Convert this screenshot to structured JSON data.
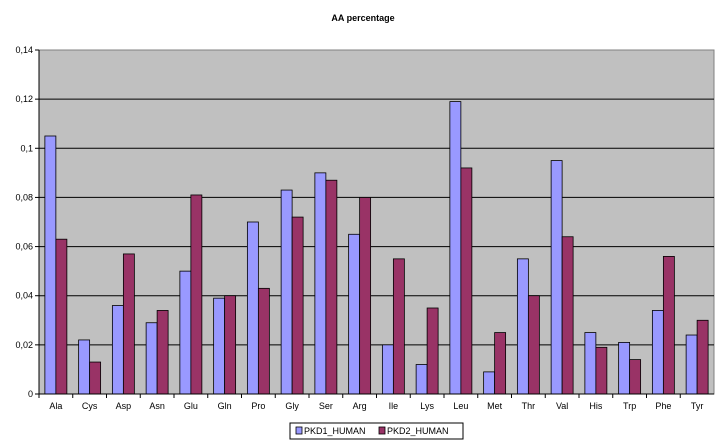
{
  "chart_data": {
    "type": "bar",
    "title": "AA percentage",
    "xlabel": "",
    "ylabel": "",
    "ylim": [
      0,
      0.14
    ],
    "yticks": [
      "0",
      "0,02",
      "0,04",
      "0,06",
      "0,08",
      "0,1",
      "0,12",
      "0,14"
    ],
    "yticks_values": [
      0,
      0.02,
      0.04,
      0.06,
      0.08,
      0.1,
      0.12,
      0.14
    ],
    "grid": true,
    "legend_position": "bottom",
    "categories": [
      "Ala",
      "Cys",
      "Asp",
      "Asn",
      "Glu",
      "Gln",
      "Pro",
      "Gly",
      "Ser",
      "Arg",
      "Ile",
      "Lys",
      "Leu",
      "Met",
      "Thr",
      "Val",
      "His",
      "Trp",
      "Phe",
      "Tyr"
    ],
    "series": [
      {
        "name": "PKD1_HUMAN",
        "color": "#9999ff",
        "values": [
          0.105,
          0.022,
          0.036,
          0.029,
          0.05,
          0.039,
          0.07,
          0.083,
          0.09,
          0.065,
          0.02,
          0.012,
          0.119,
          0.009,
          0.055,
          0.095,
          0.025,
          0.021,
          0.034,
          0.024
        ]
      },
      {
        "name": "PKD2_HUMAN",
        "color": "#993366",
        "values": [
          0.063,
          0.013,
          0.057,
          0.034,
          0.081,
          0.04,
          0.043,
          0.072,
          0.087,
          0.08,
          0.055,
          0.035,
          0.092,
          0.025,
          0.04,
          0.064,
          0.019,
          0.014,
          0.056,
          0.03
        ]
      }
    ],
    "plot_background": "#c0c0c0"
  }
}
